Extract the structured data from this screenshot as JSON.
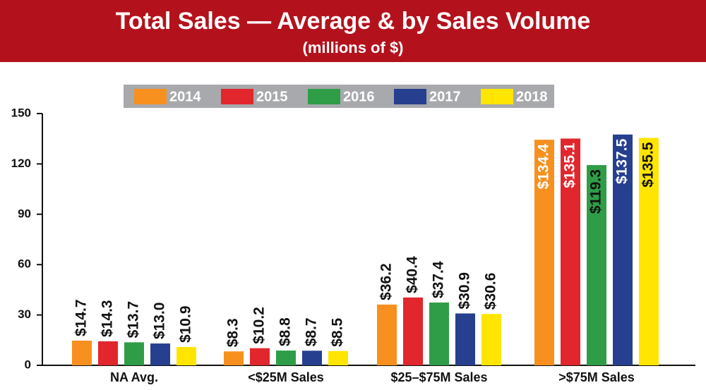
{
  "chart_data": {
    "type": "bar",
    "title": "Total Sales — Average & by Sales Volume",
    "subtitle": "(millions of $)",
    "categories": [
      "NA Avg.",
      "<$25M Sales",
      "$25–$75M Sales",
      ">$75M Sales"
    ],
    "series": [
      {
        "name": "2014",
        "color": "#f7901e",
        "values": [
          14.7,
          8.3,
          36.2,
          134.4
        ],
        "value_labels": [
          "$14.7",
          "$8.3",
          "$36.2",
          "$134.4"
        ]
      },
      {
        "name": "2015",
        "color": "#e2262d",
        "values": [
          14.3,
          10.2,
          40.4,
          135.1
        ],
        "value_labels": [
          "$14.3",
          "$10.2",
          "$40.4",
          "$135.1"
        ]
      },
      {
        "name": "2016",
        "color": "#2f9d48",
        "values": [
          13.7,
          8.8,
          37.4,
          119.3
        ],
        "value_labels": [
          "$13.7",
          "$8.8",
          "$37.4",
          "$119.3"
        ]
      },
      {
        "name": "2017",
        "color": "#263f8f",
        "values": [
          13.0,
          8.7,
          30.9,
          137.5
        ],
        "value_labels": [
          "$13.0",
          "$8.7",
          "$30.9",
          "$137.5"
        ]
      },
      {
        "name": "2018",
        "color": "#ffe500",
        "values": [
          10.9,
          8.5,
          30.6,
          135.5
        ],
        "value_labels": [
          "$10.9",
          "$8.5",
          "$30.6",
          "$135.5"
        ]
      }
    ],
    "ylim": [
      0,
      150
    ],
    "yticks": [
      0,
      30,
      60,
      90,
      120,
      150
    ],
    "grid": false
  }
}
